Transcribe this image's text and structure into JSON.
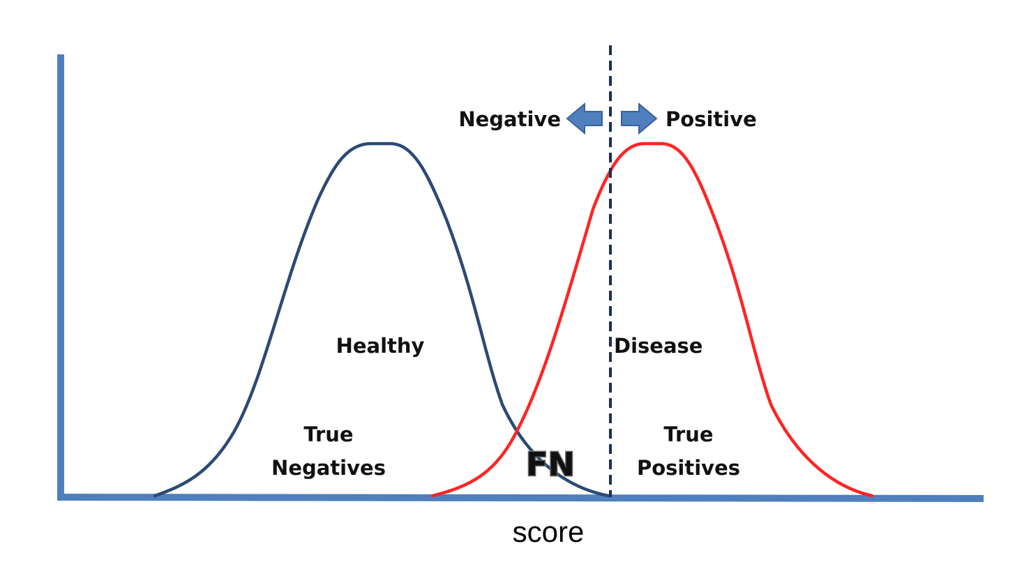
{
  "diagram": {
    "axis_label": "score",
    "direction_labels": {
      "negative": "Negative",
      "positive": "Positive"
    },
    "distribution_labels": {
      "healthy": "Healthy",
      "disease": "Disease"
    },
    "region_labels": {
      "true_negatives_line1": "True",
      "true_negatives_line2": "Negatives",
      "true_positives_line1": "True",
      "true_positives_line2": "Positives",
      "false_negatives": "FN"
    },
    "colors": {
      "axis": "#4f7fbd",
      "healthy_curve": "#2b4a75",
      "disease_curve": "#ff2424",
      "threshold": "#1c2f4f",
      "arrow_fill": "#4f7fbd",
      "arrow_stroke": "#3a6296"
    }
  }
}
